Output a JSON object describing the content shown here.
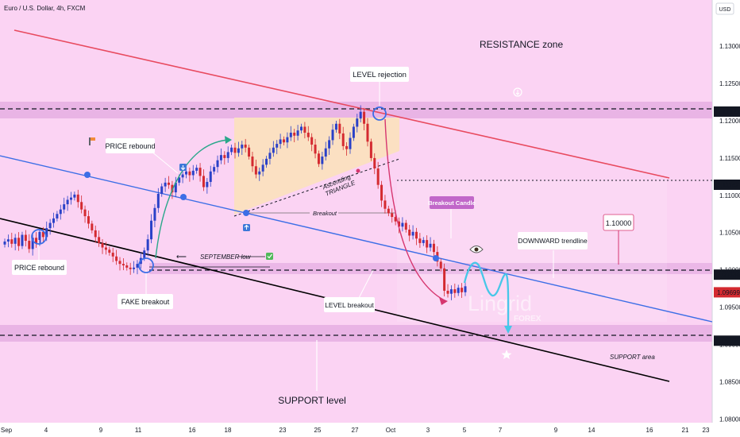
{
  "header": {
    "symbol_title": "Euro / U.S. Dollar, 4h, FXCM"
  },
  "currency_badge": "USD",
  "watermark": {
    "main": "Lingrid",
    "sub": "FOREX"
  },
  "colors": {
    "background": "#fbd3f3",
    "zone_band": "#e9b4e5",
    "triangle_fill": "#fbe0c2",
    "up_candle": "#2a41c8",
    "down_candle": "#d42a30",
    "resistance_line": "#e84a5f",
    "blue_trendline": "#3c6ee6",
    "support_line": "#000000",
    "arc_green": "#2aa78a",
    "arc_pink": "#d6366f",
    "projection": "#47c7e8",
    "label_purple": "#c167c9"
  },
  "annotations": {
    "resistance_zone": "RESISTANCE zone",
    "level_rejection": "LEVEL rejection",
    "price_rebound_top": "PRICE rebound",
    "price_rebound_left": "PRICE rebound",
    "fake_breakout": "FAKE breakout",
    "september_low": "SEPTEMBER low",
    "ascending_triangle_1": "Ascending",
    "ascending_triangle_2": "TRIANGLE",
    "breakout": "Breakout",
    "breakout_candle": "Breakout Candle",
    "downward_trendline": "DOWNWARD trendline",
    "level_breakout": "LEVEL breakout",
    "support_area": "SUPPORT area",
    "support_level": "SUPPORT level",
    "level_box": "1.10000"
  },
  "chart_data": {
    "type": "candlestick",
    "title": "Euro / U.S. Dollar, 4h, FXCM",
    "x_ticks": [
      "Sep",
      "4",
      "9",
      "11",
      "16",
      "18",
      "23",
      "25",
      "27",
      "Oct",
      "3",
      "5",
      "7",
      "9",
      "14",
      "16",
      "21",
      "23"
    ],
    "y_ticks": [
      "1.13000",
      "1.12500",
      "1.12000",
      "1.11500",
      "1.11000",
      "1.10500",
      "1.10000",
      "1.09500",
      "1.09000",
      "1.08500",
      "1.08000"
    ],
    "ylim": [
      1.0795,
      1.1362
    ],
    "highlighted_levels": [
      {
        "value": 1.12123,
        "label": "1.12123",
        "style": "dark"
      },
      {
        "value": 1.11142,
        "label": "1.11142",
        "style": "dark"
      },
      {
        "value": 1.09936,
        "label": "1.09936",
        "style": "dark"
      },
      {
        "value": 1.09699,
        "label": "1.09699",
        "style": "red"
      },
      {
        "value": 1.0905,
        "label": "1.09050",
        "style": "dark"
      }
    ],
    "zones": [
      {
        "name": "RESISTANCE zone",
        "from": 1.1201,
        "to": 1.1223
      },
      {
        "name": "LEVEL",
        "from": 1.098,
        "to": 1.1
      },
      {
        "name": "SUPPORT area",
        "from": 1.0898,
        "to": 1.0913
      }
    ],
    "close_path": [
      1.1038,
      1.1041,
      1.1035,
      1.1043,
      1.1032,
      1.1047,
      1.1039,
      1.1028,
      1.1043,
      1.1036,
      1.1051,
      1.1044,
      1.1056,
      1.1063,
      1.1069,
      1.1075,
      1.1081,
      1.1088,
      1.1094,
      1.1097,
      1.1101,
      1.1091,
      1.1081,
      1.1072,
      1.1062,
      1.1053,
      1.1044,
      1.1036,
      1.103,
      1.1027,
      1.1023,
      1.1018,
      1.1012,
      1.1008,
      1.1006,
      1.1003,
      1.1001,
      1.1003,
      1.1008,
      1.1016,
      1.1026,
      1.1041,
      1.1066,
      1.1083,
      1.1102,
      1.1112,
      1.1117,
      1.1114,
      1.1104,
      1.1117,
      1.1124,
      1.1128,
      1.1132,
      1.1127,
      1.1133,
      1.1137,
      1.1126,
      1.1111,
      1.1118,
      1.1132,
      1.1138,
      1.1147,
      1.1154,
      1.115,
      1.1158,
      1.1164,
      1.1157,
      1.1163,
      1.1168,
      1.1164,
      1.1152,
      1.1139,
      1.1128,
      1.1132,
      1.1141,
      1.1149,
      1.1157,
      1.1164,
      1.1169,
      1.1175,
      1.1171,
      1.1178,
      1.1184,
      1.118,
      1.1187,
      1.1192,
      1.1184,
      1.1178,
      1.1168,
      1.1156,
      1.1142,
      1.1152,
      1.1163,
      1.1174,
      1.1188,
      1.1196,
      1.1183,
      1.1166,
      1.1162,
      1.1177,
      1.1192,
      1.1203,
      1.1212,
      1.1196,
      1.1172,
      1.115,
      1.1136,
      1.1114,
      1.1093,
      1.1082,
      1.1076,
      1.1071,
      1.1065,
      1.1058,
      1.1063,
      1.1054,
      1.1046,
      1.1051,
      1.1042,
      1.1036,
      1.104,
      1.103,
      1.1035,
      1.1024,
      1.1011,
      1.1002,
      1.0972,
      1.0968,
      1.0974,
      1.0969,
      1.0976,
      1.097,
      1.0978
    ],
    "projection_note": "curved projection to about 1.0905"
  }
}
